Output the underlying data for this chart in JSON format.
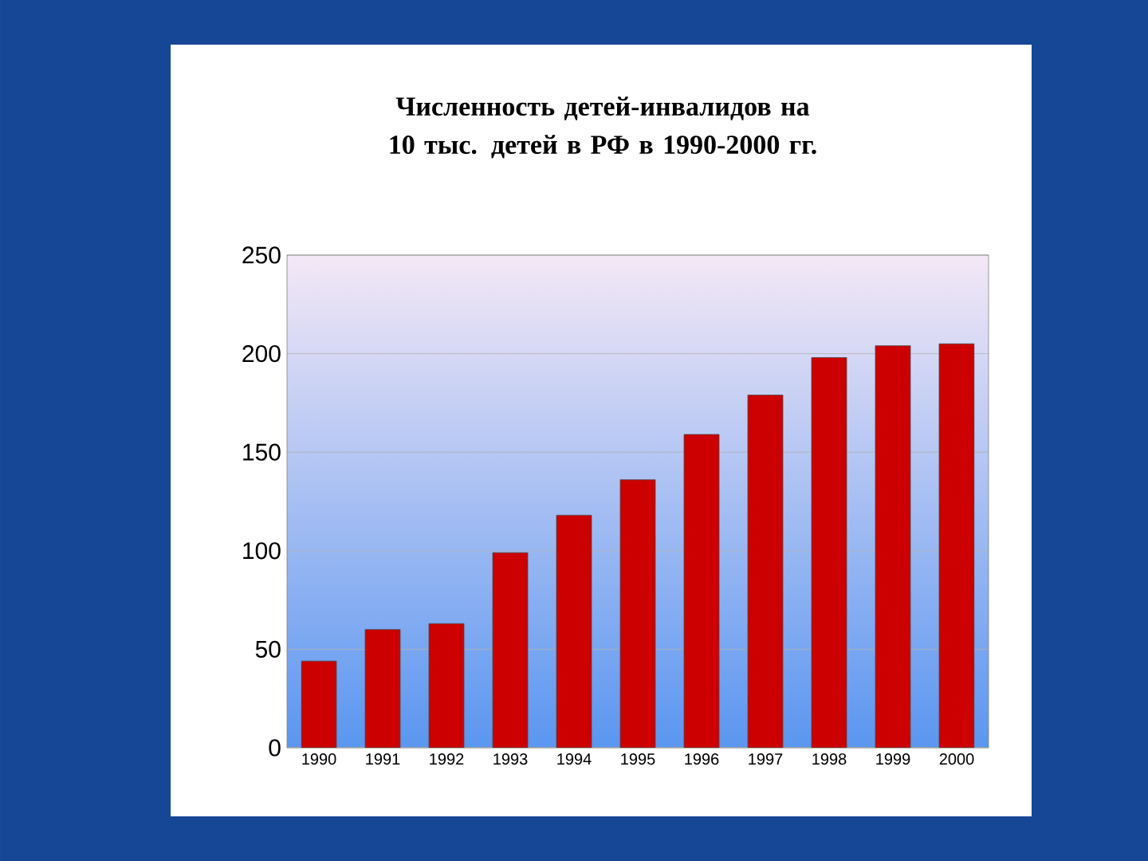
{
  "chart_data": {
    "type": "bar",
    "title": "Численность детей-инвалидов на 10 тыс. детей в РФ в 1990-2000 гг.",
    "categories": [
      "1990",
      "1991",
      "1992",
      "1993",
      "1994",
      "1995",
      "1996",
      "1997",
      "1998",
      "1999",
      "2000"
    ],
    "values": [
      44,
      60,
      63,
      99,
      118,
      136,
      159,
      179,
      198,
      204,
      205
    ],
    "color": "#cc0000",
    "ylim": [
      0,
      250
    ],
    "yticks": [
      0,
      50,
      100,
      150,
      200,
      250
    ],
    "grid": "y"
  }
}
